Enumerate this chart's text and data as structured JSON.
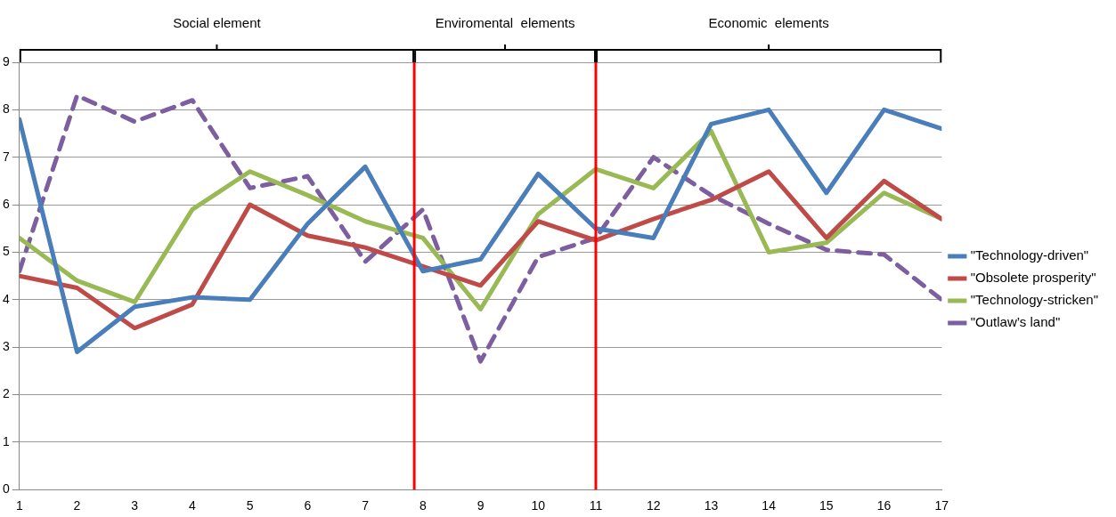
{
  "chart_data": {
    "type": "line",
    "x": [
      1,
      2,
      3,
      4,
      5,
      6,
      7,
      8,
      9,
      10,
      11,
      12,
      13,
      14,
      15,
      16,
      17
    ],
    "series": [
      {
        "name": "\"Technology-driven\"",
        "color": "#4a7ebb",
        "values": [
          7.8,
          2.9,
          3.85,
          4.05,
          4.0,
          5.6,
          6.8,
          4.6,
          4.85,
          6.65,
          5.5,
          5.3,
          7.7,
          8.0,
          6.25,
          8.0,
          7.6
        ]
      },
      {
        "name": "\"Obsolete prosperity\"",
        "color": "#be4b48",
        "values": [
          4.5,
          4.25,
          3.4,
          3.9,
          6.0,
          5.35,
          5.1,
          4.7,
          4.3,
          5.65,
          5.25,
          5.7,
          6.1,
          6.7,
          5.3,
          6.5,
          5.7
        ]
      },
      {
        "name": "\"Technology-stricken\"",
        "color": "#98b954",
        "values": [
          5.3,
          4.4,
          3.95,
          5.9,
          6.7,
          6.2,
          5.65,
          5.3,
          3.8,
          5.8,
          6.75,
          6.35,
          7.55,
          5.0,
          5.2,
          6.25,
          5.7
        ]
      },
      {
        "name": "\"Outlaw’s land\"",
        "color": "#7d5fa0",
        "line_style": "dashed",
        "values": [
          4.6,
          8.3,
          7.75,
          8.2,
          6.35,
          6.6,
          4.8,
          5.9,
          2.7,
          4.9,
          5.3,
          7.0,
          6.2,
          5.6,
          5.05,
          4.95,
          4.0
        ]
      }
    ],
    "xlim": [
      1,
      17
    ],
    "xticks": [
      1,
      2,
      3,
      4,
      5,
      6,
      7,
      8,
      9,
      10,
      11,
      12,
      13,
      14,
      15,
      16,
      17
    ],
    "ylim": [
      0,
      9
    ],
    "yticks": [
      0,
      1,
      2,
      3,
      4,
      5,
      6,
      7,
      8,
      9
    ],
    "grid": "y",
    "legend": "right",
    "marker": "none",
    "line_style": "solid",
    "ref_lines": [
      {
        "axis": "x",
        "value": 7.85,
        "color": "#ff0000"
      },
      {
        "axis": "x",
        "value": 11,
        "color": "#ff0000"
      }
    ],
    "annotations": [
      "Social element",
      "Enviromental  elements",
      "Economic  elements"
    ]
  }
}
